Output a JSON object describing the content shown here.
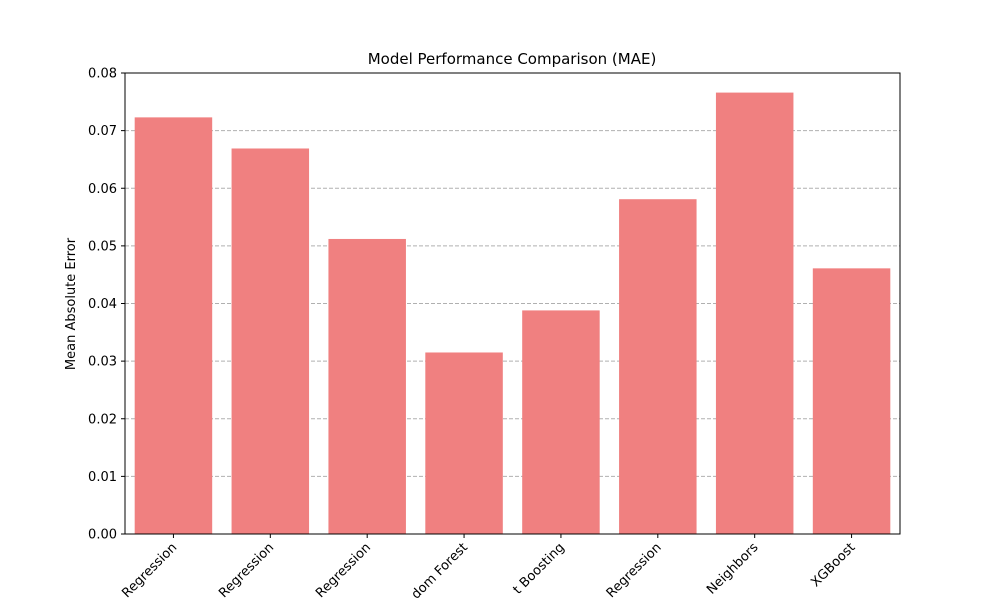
{
  "chart_data": {
    "type": "bar",
    "title": "Model Performance Comparison (MAE)",
    "xlabel": "",
    "ylabel": "Mean Absolute Error",
    "categories": [
      "Regression",
      "Regression",
      "Regression",
      "dom Forest",
      "t Boosting",
      "Regression",
      "Neighbors",
      "XGBoost"
    ],
    "values": [
      0.0723,
      0.0669,
      0.0512,
      0.0315,
      0.0388,
      0.0581,
      0.0766,
      0.0461
    ],
    "ylim": [
      0,
      0.08
    ],
    "yticks": [
      "0.00",
      "0.01",
      "0.02",
      "0.03",
      "0.04",
      "0.05",
      "0.06",
      "0.07",
      "0.08"
    ],
    "grid": "horizontal-dashed",
    "bar_color": "#f08080",
    "grid_color": "#b0b0b0"
  }
}
